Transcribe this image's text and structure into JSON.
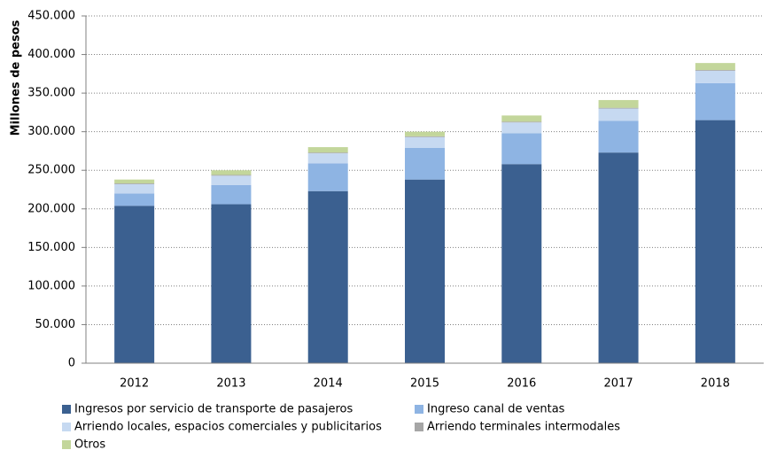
{
  "chart_data": {
    "type": "stacked-bar",
    "y_label": "Millones de pesos",
    "categories": [
      "2012",
      "2013",
      "2014",
      "2015",
      "2016",
      "2017",
      "2018"
    ],
    "series": [
      {
        "name": "Ingresos por servicio de transporte de pasajeros",
        "color": "#3b6090",
        "values": [
          204000,
          206000,
          223000,
          238000,
          258000,
          273000,
          315000
        ]
      },
      {
        "name": "Ingreso canal de ventas",
        "color": "#8eb4e3",
        "values": [
          16000,
          25000,
          36000,
          41000,
          40000,
          41000,
          48000
        ]
      },
      {
        "name": "Arriendo locales, espacios comerciales y publicitarios",
        "color": "#c6d9f1",
        "values": [
          12000,
          12000,
          13000,
          14000,
          14000,
          16000,
          16000
        ]
      },
      {
        "name": "Arriendo terminales intermodales",
        "color": "#a6a6a6",
        "values": [
          1000,
          1000,
          1000,
          1000,
          1000,
          1000,
          1000
        ]
      },
      {
        "name": "Otros",
        "color": "#c3d69b",
        "values": [
          5000,
          6000,
          7000,
          6000,
          8000,
          10000,
          9000
        ]
      }
    ],
    "ylim": [
      0,
      450000
    ],
    "yticks": [
      0,
      {
        "value": 50000,
        "label": "50.000"
      },
      {
        "value": 100000,
        "label": "100.000"
      },
      {
        "value": 150000,
        "label": "150.000"
      },
      {
        "value": 200000,
        "label": "200.000"
      },
      {
        "value": 250000,
        "label": "250.000"
      },
      {
        "value": 300000,
        "label": "300.000"
      },
      {
        "value": 350000,
        "label": "350.000"
      },
      {
        "value": 400000,
        "label": "400.000"
      },
      {
        "value": 450000,
        "label": "450.000"
      }
    ],
    "grid": true
  }
}
